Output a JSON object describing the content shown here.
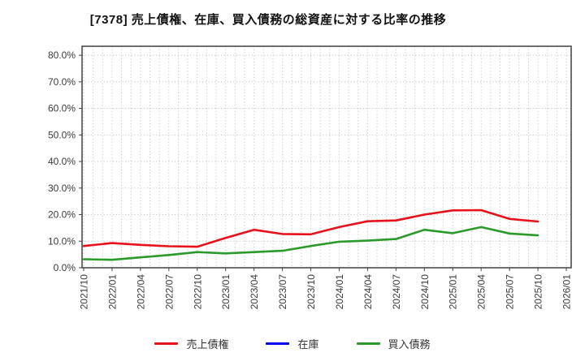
{
  "chart_data": {
    "type": "line",
    "title": "[7378]  売上債権、在庫、買入債務の総資産に対する比率の推移",
    "xlabel": "",
    "ylabel": "",
    "grid": true,
    "grid_style": "dotted",
    "legend_position": "bottom",
    "ylim": [
      0,
      83.4
    ],
    "y_ticks": [
      {
        "value": 0,
        "label": "0.0%"
      },
      {
        "value": 10,
        "label": "10.0%"
      },
      {
        "value": 20,
        "label": "20.0%"
      },
      {
        "value": 30,
        "label": "30.0%"
      },
      {
        "value": 40,
        "label": "40.0%"
      },
      {
        "value": 50,
        "label": "50.0%"
      },
      {
        "value": 60,
        "label": "60.0%"
      },
      {
        "value": 70,
        "label": "70.0%"
      },
      {
        "value": 80,
        "label": "80.0%"
      }
    ],
    "x_months_span": 51,
    "x_ticks": [
      {
        "month": 0,
        "label": "2021/10"
      },
      {
        "month": 3,
        "label": "2022/01"
      },
      {
        "month": 6,
        "label": "2022/04"
      },
      {
        "month": 9,
        "label": "2022/07"
      },
      {
        "month": 12,
        "label": "2022/10"
      },
      {
        "month": 15,
        "label": "2023/01"
      },
      {
        "month": 18,
        "label": "2023/04"
      },
      {
        "month": 21,
        "label": "2023/07"
      },
      {
        "month": 24,
        "label": "2023/10"
      },
      {
        "month": 27,
        "label": "2024/01"
      },
      {
        "month": 30,
        "label": "2024/04"
      },
      {
        "month": 33,
        "label": "2024/07"
      },
      {
        "month": 36,
        "label": "2024/10"
      },
      {
        "month": 39,
        "label": "2025/01"
      },
      {
        "month": 42,
        "label": "2025/04"
      },
      {
        "month": 45,
        "label": "2025/07"
      },
      {
        "month": 48,
        "label": "2025/10"
      },
      {
        "month": 51,
        "label": "2026/01"
      }
    ],
    "categories": [
      "2021/10",
      "2022/01",
      "2022/04",
      "2022/07",
      "2022/10",
      "2023/01",
      "2023/04",
      "2023/07",
      "2023/10",
      "2024/01",
      "2024/04",
      "2024/07",
      "2024/10",
      "2025/01",
      "2025/04",
      "2025/07",
      "2025/10"
    ],
    "point_month_indices": [
      0,
      3,
      6,
      9,
      12,
      15,
      18,
      21,
      24,
      27,
      30,
      33,
      36,
      39,
      42,
      45,
      48
    ],
    "series": [
      {
        "name": "売上債権",
        "color": "#e8111b",
        "visible": true,
        "values": [
          8.2,
          9.3,
          8.6,
          8.1,
          7.9,
          11.2,
          14.3,
          12.7,
          12.6,
          15.3,
          17.5,
          17.8,
          20.0,
          21.6,
          21.7,
          18.4,
          17.4
        ]
      },
      {
        "name": "在庫",
        "color": "#0000ee",
        "visible": false,
        "values": []
      },
      {
        "name": "買入債務",
        "color": "#2a9a2a",
        "visible": true,
        "values": [
          3.2,
          3.0,
          3.9,
          4.8,
          5.9,
          5.4,
          5.9,
          6.4,
          8.2,
          9.8,
          10.2,
          10.8,
          14.3,
          13.0,
          15.3,
          12.9,
          12.2
        ]
      }
    ],
    "colors": {
      "grid": "#b4b4b4",
      "axis_border": "#404040",
      "tick_label": "#3a3a3a",
      "title": "#111111"
    }
  }
}
